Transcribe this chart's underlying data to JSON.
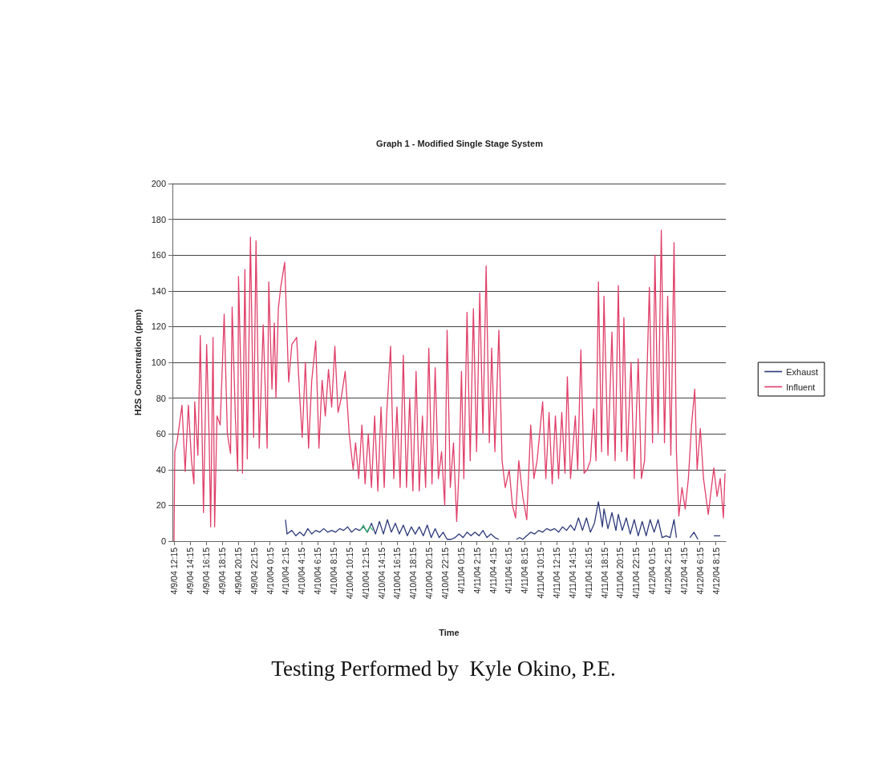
{
  "chart_data": {
    "type": "line",
    "title": "Graph 1 - Modified Single Stage System",
    "xlabel": "Time",
    "ylabel": "H2S Concentration (ppm)",
    "annotations": [
      "Testing Performed by  Kyle Okino, P.E."
    ],
    "xlim": [
      "--04-09T12:00",
      "--04-12T09:30"
    ],
    "xticks": [
      {
        "value": "--04-09T12:15",
        "label": "4/9/04 12:15"
      },
      {
        "value": "--04-09T14:15",
        "label": "4/9/04 14:15"
      },
      {
        "value": "--04-09T16:15",
        "label": "4/9/04 16:15"
      },
      {
        "value": "--04-09T18:15",
        "label": "4/9/04 18:15"
      },
      {
        "value": "--04-09T20:15",
        "label": "4/9/04 20:15"
      },
      {
        "value": "--04-09T22:15",
        "label": "4/9/04 22:15"
      },
      {
        "value": "--04-10T00:15",
        "label": "4/10/04 0:15"
      },
      {
        "value": "--04-10T02:15",
        "label": "4/10/04 2:15"
      },
      {
        "value": "--04-10T04:15",
        "label": "4/10/04 4:15"
      },
      {
        "value": "--04-10T06:15",
        "label": "4/10/04 6:15"
      },
      {
        "value": "--04-10T08:15",
        "label": "4/10/04 8:15"
      },
      {
        "value": "--04-10T10:15",
        "label": "4/10/04 10:15"
      },
      {
        "value": "--04-10T12:15",
        "label": "4/10/04 12:15"
      },
      {
        "value": "--04-10T14:15",
        "label": "4/10/04 14:15"
      },
      {
        "value": "--04-10T16:15",
        "label": "4/10/04 16:15"
      },
      {
        "value": "--04-10T18:15",
        "label": "4/10/04 18:15"
      },
      {
        "value": "--04-10T20:15",
        "label": "4/10/04 20:15"
      },
      {
        "value": "--04-10T22:15",
        "label": "4/10/04 22:15"
      },
      {
        "value": "--04-11T00:15",
        "label": "4/11/04 0:15"
      },
      {
        "value": "--04-11T02:15",
        "label": "4/11/04 2:15"
      },
      {
        "value": "--04-11T04:15",
        "label": "4/11/04 4:15"
      },
      {
        "value": "--04-11T06:15",
        "label": "4/11/04 6:15"
      },
      {
        "value": "--04-11T08:15",
        "label": "4/11/04 8:15"
      },
      {
        "value": "--04-11T10:15",
        "label": "4/11/04 10:15"
      },
      {
        "value": "--04-11T12:15",
        "label": "4/11/04 12:15"
      },
      {
        "value": "--04-11T14:15",
        "label": "4/11/04 14:15"
      },
      {
        "value": "--04-11T16:15",
        "label": "4/11/04 16:15"
      },
      {
        "value": "--04-11T18:15",
        "label": "4/11/04 18:15"
      },
      {
        "value": "--04-11T20:15",
        "label": "4/11/04 20:15"
      },
      {
        "value": "--04-11T22:15",
        "label": "4/11/04 22:15"
      },
      {
        "value": "--04-12T00:15",
        "label": "4/12/04 0:15"
      },
      {
        "value": "--04-12T02:15",
        "label": "4/12/04 2:15"
      },
      {
        "value": "--04-12T04:15",
        "label": "4/12/04 4:15"
      },
      {
        "value": "--04-12T06:15",
        "label": "4/12/04 6:15"
      },
      {
        "value": "--04-12T08:15",
        "label": "4/12/04 8:15"
      }
    ],
    "ylim": [
      0,
      200
    ],
    "yticks": [
      0,
      20,
      40,
      60,
      80,
      100,
      120,
      140,
      160,
      180,
      200
    ],
    "grid": "y",
    "legend": "right",
    "marker": "none",
    "line_style": "solid",
    "series": [
      {
        "name": "Exhaust",
        "color": "#2e3a7a",
        "x": [
          "--04-10T02:12",
          "--04-10T02:24",
          "--04-10T03:00",
          "--04-10T03:30",
          "--04-10T04:00",
          "--04-10T04:30",
          "--04-10T05:00",
          "--04-10T05:30",
          "--04-10T06:00",
          "--04-10T06:30",
          "--04-10T07:00",
          "--04-10T07:30",
          "--04-10T08:00",
          "--04-10T08:30",
          "--04-10T09:00",
          "--04-10T09:30",
          "--04-10T10:00",
          "--04-10T10:30",
          "--04-10T11:00",
          "--04-10T11:30",
          "--04-10T12:00",
          "--04-10T12:30",
          "--04-10T13:00",
          "--04-10T13:30",
          "--04-10T14:00",
          "--04-10T14:30",
          "--04-10T15:00",
          "--04-10T15:30",
          "--04-10T16:00",
          "--04-10T16:30",
          "--04-10T17:00",
          "--04-10T17:30",
          "--04-10T18:00",
          "--04-10T18:30",
          "--04-10T19:00",
          "--04-10T19:30",
          "--04-10T20:00",
          "--04-10T20:30",
          "--04-10T21:00",
          "--04-10T21:30",
          "--04-10T22:00",
          "--04-10T22:30",
          "--04-10T23:00",
          "--04-10T23:30",
          "--04-11T00:00",
          "--04-11T00:30",
          "--04-11T01:00",
          "--04-11T01:30",
          "--04-11T02:00",
          "--04-11T02:30",
          "--04-11T03:00",
          "--04-11T03:30",
          "--04-11T04:00",
          "--04-11T04:30",
          "--04-11T05:00",
          "--04-11T05:48",
          "--04-11T07:12",
          "--04-11T07:36",
          "--04-11T08:00",
          "--04-11T08:30",
          "--04-11T09:00",
          "--04-11T09:30",
          "--04-11T10:00",
          "--04-11T10:30",
          "--04-11T11:00",
          "--04-11T11:30",
          "--04-11T12:00",
          "--04-11T12:30",
          "--04-11T13:00",
          "--04-11T13:30",
          "--04-11T14:00",
          "--04-11T14:30",
          "--04-11T15:00",
          "--04-11T15:30",
          "--04-11T16:00",
          "--04-11T16:30",
          "--04-11T17:00",
          "--04-11T17:30",
          "--04-11T18:00",
          "--04-11T18:12",
          "--04-11T18:42",
          "--04-11T19:12",
          "--04-11T19:42",
          "--04-11T20:00",
          "--04-11T20:30",
          "--04-11T21:00",
          "--04-11T21:30",
          "--04-11T22:00",
          "--04-11T22:30",
          "--04-11T23:00",
          "--04-11T23:30",
          "--04-12T00:00",
          "--04-12T00:30",
          "--04-12T01:00",
          "--04-12T01:30",
          "--04-12T02:00",
          "--04-12T02:30",
          "--04-12T03:00",
          "--04-12T03:18",
          "--04-12T03:36",
          "--04-12T05:00",
          "--04-12T05:30",
          "--04-12T06:00",
          "--04-12T06:30",
          "--04-12T08:00",
          "--04-12T08:48"
        ],
        "values": [
          12,
          4,
          6,
          3,
          5,
          3,
          7,
          4,
          6,
          5,
          7,
          5,
          6,
          5,
          7,
          6,
          8,
          5,
          7,
          6,
          8,
          5,
          10,
          4,
          11,
          4,
          12,
          5,
          10,
          4,
          9,
          3,
          8,
          4,
          8,
          3,
          9,
          2,
          7,
          2,
          5,
          1,
          1,
          2,
          4,
          2,
          5,
          3,
          5,
          3,
          6,
          2,
          4,
          2,
          1,
          null,
          1,
          2,
          1,
          3,
          5,
          4,
          6,
          5,
          7,
          6,
          7,
          5,
          8,
          6,
          9,
          6,
          13,
          6,
          13,
          5,
          10,
          22,
          8,
          18,
          7,
          16,
          6,
          15,
          6,
          13,
          4,
          12,
          3,
          11,
          3,
          12,
          5,
          12,
          2,
          3,
          2,
          12,
          2,
          null,
          2,
          5,
          1,
          null,
          3,
          3
        ]
      },
      {
        "name": "Influent",
        "color": "#e0406a",
        "x": [
          "--04-09T12:12",
          "--04-09T12:18",
          "--04-09T12:36",
          "--04-09T13:12",
          "--04-09T13:36",
          "--04-09T14:00",
          "--04-09T14:24",
          "--04-09T14:42",
          "--04-09T14:48",
          "--04-09T15:12",
          "--04-09T15:30",
          "--04-09T15:54",
          "--04-09T16:18",
          "--04-09T16:36",
          "--04-09T16:48",
          "--04-09T17:06",
          "--04-09T17:18",
          "--04-09T17:36",
          "--04-09T18:00",
          "--04-09T18:30",
          "--04-09T18:54",
          "--04-09T19:18",
          "--04-09T19:30",
          "--04-09T19:54",
          "--04-09T20:12",
          "--04-09T20:18",
          "--04-09T20:42",
          "--04-09T20:48",
          "--04-09T21:06",
          "--04-09T21:24",
          "--04-09T21:48",
          "--04-09T22:12",
          "--04-09T22:30",
          "--04-09T22:54",
          "--04-09T23:24",
          "--04-09T23:54",
          "--04-10T00:06",
          "--04-10T00:30",
          "--04-10T00:48",
          "--04-10T01:00",
          "--04-10T01:18",
          "--04-10T01:36",
          "--04-10T02:06",
          "--04-10T02:36",
          "--04-10T03:00",
          "--04-10T03:36",
          "--04-10T04:00",
          "--04-10T04:18",
          "--04-10T04:42",
          "--04-10T05:06",
          "--04-10T05:30",
          "--04-10T06:00",
          "--04-10T06:24",
          "--04-10T06:48",
          "--04-10T07:12",
          "--04-10T07:36",
          "--04-10T08:00",
          "--04-10T08:24",
          "--04-10T08:48",
          "--04-10T09:12",
          "--04-10T09:42",
          "--04-10T10:12",
          "--04-10T10:42",
          "--04-10T11:00",
          "--04-10T11:24",
          "--04-10T11:48",
          "--04-10T12:12",
          "--04-10T12:36",
          "--04-10T13:00",
          "--04-10T13:24",
          "--04-10T13:48",
          "--04-10T14:12",
          "--04-10T14:36",
          "--04-10T14:54",
          "--04-10T15:24",
          "--04-10T15:48",
          "--04-10T16:12",
          "--04-10T16:36",
          "--04-10T17:00",
          "--04-10T17:24",
          "--04-10T17:48",
          "--04-10T18:12",
          "--04-10T18:36",
          "--04-10T19:00",
          "--04-10T19:24",
          "--04-10T19:48",
          "--04-10T20:12",
          "--04-10T20:36",
          "--04-10T21:00",
          "--04-10T21:24",
          "--04-10T21:48",
          "--04-10T22:12",
          "--04-10T22:30",
          "--04-10T22:54",
          "--04-10T23:18",
          "--04-10T23:42",
          "--04-11T00:00",
          "--04-11T00:18",
          "--04-11T00:36",
          "--04-11T01:00",
          "--04-11T01:24",
          "--04-11T01:48",
          "--04-11T02:12",
          "--04-11T02:36",
          "--04-11T03:00",
          "--04-11T03:24",
          "--04-11T03:48",
          "--04-11T04:06",
          "--04-11T04:30",
          "--04-11T05:00",
          "--04-11T05:24",
          "--04-11T05:48",
          "--04-11T06:18",
          "--04-11T06:42",
          "--04-11T07:06",
          "--04-11T07:30",
          "--04-11T08:00",
          "--04-11T08:30",
          "--04-11T09:00",
          "--04-11T09:24",
          "--04-11T09:48",
          "--04-11T10:30",
          "--04-11T10:54",
          "--04-11T11:18",
          "--04-11T11:42",
          "--04-11T12:06",
          "--04-11T12:30",
          "--04-11T12:54",
          "--04-11T13:18",
          "--04-11T13:36",
          "--04-11T14:00",
          "--04-11T14:36",
          "--04-11T14:54",
          "--04-11T15:18",
          "--04-11T15:42",
          "--04-11T16:06",
          "--04-11T16:30",
          "--04-11T16:54",
          "--04-11T17:12",
          "--04-11T17:30",
          "--04-11T17:54",
          "--04-11T18:12",
          "--04-11T18:42",
          "--04-11T19:12",
          "--04-11T19:36",
          "--04-11T20:00",
          "--04-11T20:24",
          "--04-11T20:42",
          "--04-11T21:06",
          "--04-11T21:36",
          "--04-11T22:00",
          "--04-11T22:30",
          "--04-11T22:54",
          "--04-11T23:18",
          "--04-11T23:54",
          "--04-12T00:18",
          "--04-12T00:36",
          "--04-12T01:00",
          "--04-12T01:24",
          "--04-12T01:48",
          "--04-12T02:12",
          "--04-12T02:36",
          "--04-12T03:00",
          "--04-12T03:18",
          "--04-12T03:36",
          "--04-12T04:00",
          "--04-12T04:24",
          "--04-12T04:48",
          "--04-12T05:12",
          "--04-12T05:36",
          "--04-12T05:54",
          "--04-12T06:18",
          "--04-12T06:42",
          "--04-12T07:00",
          "--04-12T07:18",
          "--04-12T07:42",
          "--04-12T08:00",
          "--04-12T08:24",
          "--04-12T08:48",
          "--04-12T09:12",
          "--04-12T09:24"
        ],
        "values": [
          0,
          50,
          56,
          76,
          39,
          76,
          45,
          32,
          78,
          48,
          115,
          16,
          110,
          60,
          8,
          114,
          8,
          70,
          65,
          127,
          60,
          49,
          131,
          70,
          39,
          148,
          75,
          38,
          152,
          46,
          170,
          58,
          168,
          52,
          121,
          52,
          145,
          85,
          122,
          80,
          130,
          142,
          156,
          89,
          110,
          114,
          80,
          58,
          100,
          52,
          90,
          112,
          52,
          90,
          70,
          96,
          75,
          109,
          72,
          80,
          95,
          60,
          40,
          55,
          35,
          65,
          32,
          60,
          30,
          70,
          28,
          75,
          30,
          70,
          109,
          35,
          75,
          30,
          104,
          30,
          80,
          28,
          95,
          28,
          70,
          30,
          108,
          32,
          97,
          35,
          50,
          20,
          118,
          30,
          55,
          11,
          40,
          95,
          35,
          128,
          45,
          130,
          50,
          139,
          60,
          154,
          55,
          108,
          50,
          118,
          45,
          30,
          40,
          20,
          13,
          45,
          25,
          12,
          65,
          35,
          45,
          78,
          35,
          72,
          32,
          70,
          35,
          72,
          38,
          92,
          35,
          70,
          40,
          107,
          38,
          40,
          45,
          74,
          45,
          145,
          50,
          137,
          48,
          117,
          45,
          143,
          50,
          125,
          45,
          100,
          35,
          102,
          35,
          45,
          142,
          55,
          160,
          60,
          174,
          55,
          137,
          48,
          167,
          50,
          14,
          30,
          18,
          35,
          65,
          85,
          40,
          63,
          35,
          25,
          15,
          30,
          41,
          25,
          35,
          13,
          38
        ]
      },
      {
        "color": "#3cb371",
        "x": [
          "--04-10T11:36",
          "--04-10T12:00",
          "--04-10T12:24",
          "--04-10T12:48",
          "--04-10T13:12"
        ],
        "values": [
          6,
          9,
          5,
          8,
          6
        ]
      }
    ]
  }
}
